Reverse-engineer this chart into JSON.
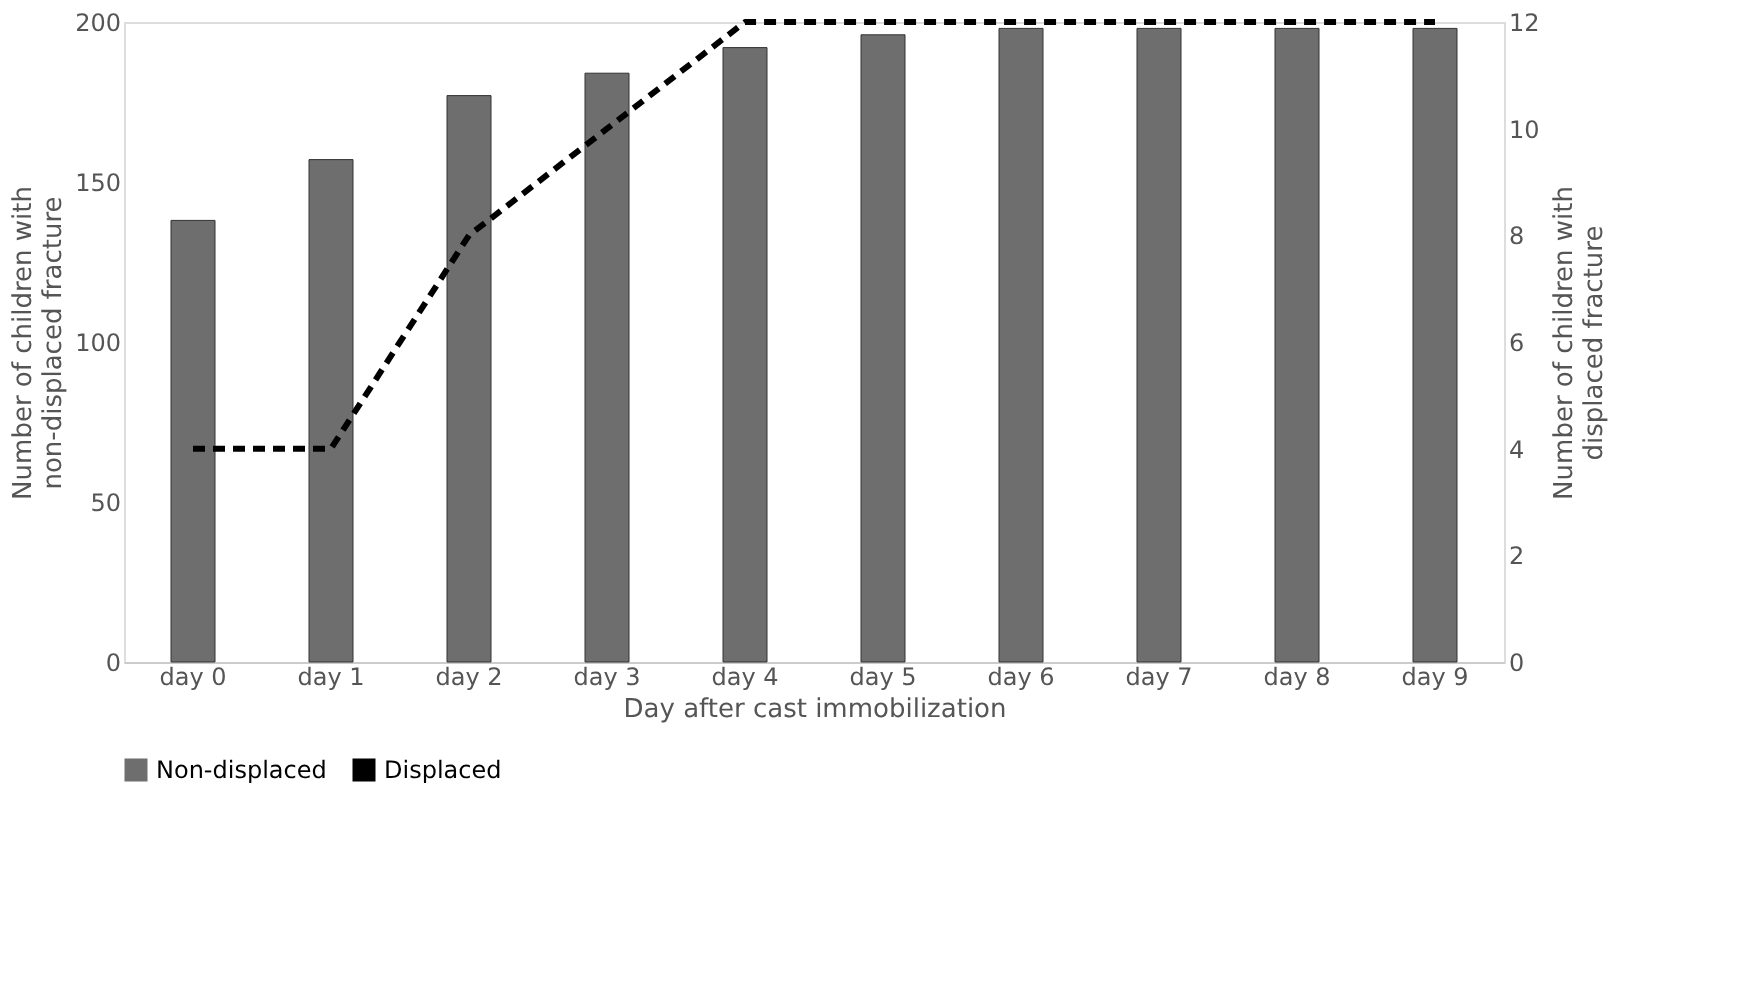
{
  "chart_data": {
    "type": "bar",
    "categories": [
      "day 0",
      "day 1",
      "day 2",
      "day 3",
      "day 4",
      "day 5",
      "day 6",
      "day 7",
      "day 8",
      "day 9"
    ],
    "xlabel": "Day after cast immobilization",
    "ylabel": "Number of children with non-displaced fracture",
    "y2label": "Number of children with displaced fracture",
    "series": [
      {
        "name": "Non-displaced",
        "color": "#6e6e6e",
        "values": [
          138,
          157,
          177,
          184,
          192,
          196,
          198,
          198,
          198,
          198
        ]
      },
      {
        "name": "Displaced",
        "type": "line",
        "axis": "y2",
        "color": "#000000",
        "line_style": "dashed",
        "values": [
          4,
          4,
          8,
          10,
          12,
          12,
          12,
          12,
          12,
          12
        ]
      }
    ],
    "ylim": [
      0,
      200
    ],
    "yticks": [
      0,
      50,
      100,
      150,
      200
    ],
    "y2lim": [
      0,
      12
    ],
    "y2ticks": [
      0,
      2,
      4,
      6,
      8,
      10,
      12
    ],
    "grid": false,
    "legend": "bottom",
    "marker": "none"
  }
}
